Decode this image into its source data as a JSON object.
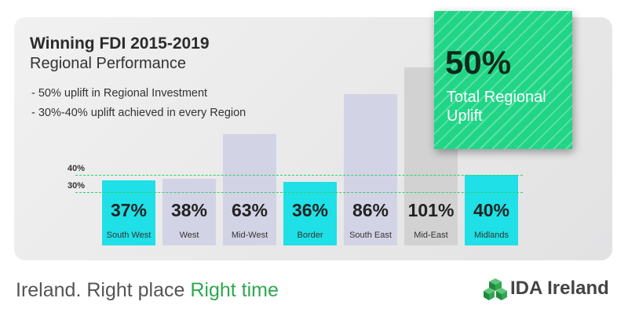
{
  "header": {
    "title": "Winning FDI 2015-2019",
    "subtitle": "Regional Performance",
    "bullets": [
      "- 50% uplift in Regional Investment",
      "- 30%-40% uplift achieved in every Region"
    ]
  },
  "callout": {
    "value": "50%",
    "caption": "Total Regional Uplift",
    "color": "#21d586"
  },
  "chart_data": {
    "type": "bar",
    "categories": [
      "South West",
      "West",
      "Mid-West",
      "Border",
      "South East",
      "Mid-East",
      "Midlands"
    ],
    "values": [
      37,
      38,
      63,
      36,
      86,
      101,
      40
    ],
    "value_labels": [
      "37%",
      "38%",
      "63%",
      "36%",
      "86%",
      "101%",
      "40%"
    ],
    "highlighted": [
      true,
      false,
      false,
      true,
      false,
      false,
      true
    ],
    "reference_lines": [
      {
        "value": 40,
        "label": "40%"
      },
      {
        "value": 30,
        "label": "30%"
      }
    ],
    "colors": {
      "highlight_bar": "#1ee0e6",
      "lavender_bar": "#d3d3e6",
      "grey_bar": "#d2d2d2",
      "reference_line": "#2cd36a"
    }
  },
  "footer": {
    "tagline_a": "Ireland. Right place ",
    "tagline_b": "Right time",
    "tagline_color": "#2fa84f",
    "brand": "IDA Ireland",
    "brand_icon": "ida-cube-logo-icon"
  }
}
